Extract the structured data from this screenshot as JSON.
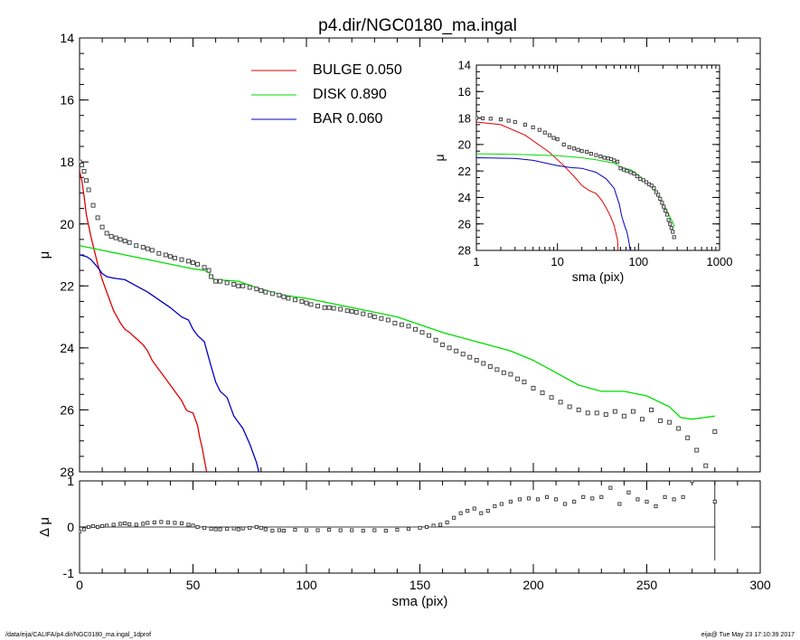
{
  "title": "p4.dir/NGC0180_ma.ingal",
  "footer_left": "/data/eija/CALIFA/p4.dir/NGC0180_ma.ingal_1dprof",
  "footer_right": "eija@  Tue May 23 17:10:39 2017",
  "colors": {
    "bulge": "#e00000",
    "disk": "#00dd00",
    "bar": "#0000c0",
    "data": "#555555"
  },
  "chart_data": [
    {
      "id": "main",
      "type": "line",
      "xlabel": "",
      "ylabel": "μ",
      "xlim": [
        0,
        300
      ],
      "ylim": [
        28,
        14
      ],
      "yticks": [
        14,
        16,
        18,
        20,
        22,
        24,
        26,
        28
      ],
      "legend": [
        {
          "label": "BULGE  0.050",
          "color": "#e00000"
        },
        {
          "label": "DISK  0.890",
          "color": "#00dd00"
        },
        {
          "label": "BAR  0.060",
          "color": "#0000c0"
        }
      ],
      "series": [
        {
          "name": "BULGE",
          "color": "#e00000",
          "x": [
            0,
            1,
            2,
            3,
            5,
            8,
            10,
            12,
            15,
            18,
            20,
            22,
            25,
            28,
            30,
            32,
            35,
            38,
            40,
            42,
            45,
            47,
            48,
            50,
            52,
            53,
            54,
            55,
            56
          ],
          "y": [
            18.3,
            18.6,
            19.1,
            19.7,
            20.4,
            21.3,
            21.8,
            22.2,
            22.8,
            23.2,
            23.4,
            23.5,
            23.7,
            23.9,
            24.1,
            24.4,
            24.7,
            25.0,
            25.2,
            25.4,
            25.7,
            26.0,
            26.05,
            26.1,
            26.5,
            26.9,
            27.2,
            27.6,
            28.0
          ]
        },
        {
          "name": "DISK",
          "color": "#00dd00",
          "x": [
            0,
            10,
            20,
            30,
            40,
            50,
            55,
            57,
            58,
            60,
            70,
            80,
            90,
            100,
            110,
            120,
            130,
            140,
            150,
            160,
            170,
            180,
            190,
            200,
            210,
            220,
            230,
            240,
            250,
            260,
            265,
            270,
            275,
            280
          ],
          "y": [
            20.7,
            20.85,
            21.0,
            21.15,
            21.3,
            21.45,
            21.5,
            21.55,
            21.75,
            21.8,
            21.85,
            22.1,
            22.3,
            22.4,
            22.55,
            22.7,
            22.85,
            23.0,
            23.25,
            23.5,
            23.7,
            23.9,
            24.1,
            24.4,
            24.8,
            25.2,
            25.4,
            25.4,
            25.55,
            25.9,
            26.25,
            26.3,
            26.25,
            26.2
          ]
        },
        {
          "name": "BAR",
          "color": "#0000c0",
          "x": [
            0,
            3,
            5,
            8,
            10,
            12,
            15,
            20,
            25,
            30,
            35,
            40,
            45,
            48,
            50,
            52,
            55,
            58,
            60,
            62,
            65,
            68,
            70,
            72,
            75,
            78,
            79
          ],
          "y": [
            21.0,
            21.05,
            21.15,
            21.4,
            21.6,
            21.7,
            21.75,
            21.8,
            22.0,
            22.2,
            22.45,
            22.7,
            23.0,
            23.1,
            23.4,
            23.6,
            23.8,
            24.6,
            25.1,
            25.4,
            25.6,
            26.2,
            26.4,
            26.6,
            27.1,
            27.7,
            28.0
          ]
        },
        {
          "name": "",
          "color": "#555555",
          "marker": "square",
          "x": [
            0,
            1,
            2,
            3,
            4,
            6,
            8,
            10,
            12,
            14,
            16,
            18,
            20,
            22,
            25,
            28,
            30,
            32,
            35,
            38,
            40,
            42,
            45,
            48,
            50,
            52,
            55,
            57,
            58,
            60,
            62,
            65,
            68,
            70,
            72,
            75,
            78,
            80,
            82,
            85,
            88,
            90,
            92,
            95,
            98,
            100,
            102,
            105,
            108,
            110,
            112,
            115,
            118,
            120,
            122,
            125,
            128,
            130,
            133,
            136,
            139,
            142,
            145,
            148,
            151,
            154,
            157,
            160,
            163,
            166,
            169,
            172,
            175,
            178,
            181,
            184,
            187,
            190,
            193,
            196,
            200,
            204,
            208,
            212,
            216,
            220,
            224,
            228,
            232,
            236,
            240,
            244,
            248,
            252,
            256,
            260,
            264,
            268,
            272,
            276,
            280
          ],
          "y": [
            18.0,
            18.1,
            18.3,
            18.6,
            18.9,
            19.4,
            19.8,
            20.1,
            20.3,
            20.4,
            20.45,
            20.5,
            20.55,
            20.6,
            20.7,
            20.75,
            20.8,
            20.85,
            20.95,
            21.0,
            21.05,
            21.1,
            21.15,
            21.2,
            21.25,
            21.3,
            21.4,
            21.5,
            21.7,
            21.85,
            21.85,
            21.9,
            21.95,
            22.0,
            22.0,
            22.05,
            22.1,
            22.15,
            22.2,
            22.25,
            22.3,
            22.35,
            22.4,
            22.45,
            22.5,
            22.55,
            22.6,
            22.65,
            22.7,
            22.7,
            22.72,
            22.75,
            22.8,
            22.82,
            22.85,
            22.9,
            22.95,
            23.0,
            23.05,
            23.1,
            23.2,
            23.25,
            23.3,
            23.4,
            23.5,
            23.6,
            23.75,
            23.9,
            24.0,
            24.1,
            24.2,
            24.3,
            24.4,
            24.5,
            24.6,
            24.7,
            24.8,
            24.85,
            25.0,
            25.1,
            25.3,
            25.45,
            25.6,
            25.75,
            25.9,
            26.0,
            26.1,
            26.1,
            26.15,
            26.05,
            26.2,
            26.05,
            26.3,
            26.0,
            26.35,
            26.4,
            26.6,
            26.9,
            27.3,
            27.8,
            26.7
          ]
        }
      ]
    },
    {
      "id": "residual",
      "type": "scatter",
      "xlabel": "sma (pix)",
      "ylabel": "Δ μ",
      "xlim": [
        0,
        300
      ],
      "ylim": [
        -1,
        1
      ],
      "xticks": [
        0,
        50,
        100,
        150,
        200,
        250,
        300
      ],
      "yticks": [
        -1,
        0,
        1
      ],
      "series": [
        {
          "name": "",
          "color": "#555555",
          "marker": "square",
          "x": [
            0,
            2,
            4,
            6,
            8,
            10,
            12,
            15,
            18,
            20,
            22,
            25,
            28,
            30,
            33,
            36,
            39,
            42,
            45,
            48,
            50,
            52,
            55,
            58,
            60,
            62,
            65,
            68,
            70,
            72,
            75,
            78,
            80,
            82,
            85,
            88,
            90,
            95,
            100,
            105,
            110,
            115,
            120,
            125,
            130,
            135,
            140,
            145,
            150,
            153,
            156,
            159,
            162,
            165,
            168,
            171,
            174,
            177,
            180,
            183,
            186,
            190,
            194,
            198,
            202,
            206,
            210,
            214,
            218,
            222,
            226,
            230,
            234,
            238,
            242,
            246,
            250,
            254,
            258,
            262,
            266,
            270,
            280
          ],
          "y": [
            -0.1,
            -0.05,
            0.0,
            0.02,
            0.0,
            0.02,
            0.03,
            0.05,
            0.07,
            0.08,
            0.06,
            0.05,
            0.07,
            0.09,
            0.1,
            0.11,
            0.1,
            0.09,
            0.08,
            0.05,
            0.03,
            0.0,
            -0.02,
            -0.04,
            -0.05,
            -0.05,
            -0.04,
            -0.03,
            -0.05,
            -0.03,
            -0.02,
            0.0,
            -0.02,
            -0.05,
            -0.08,
            -0.07,
            -0.08,
            -0.06,
            -0.07,
            -0.07,
            -0.06,
            -0.07,
            -0.07,
            -0.08,
            -0.07,
            -0.08,
            -0.06,
            -0.04,
            -0.02,
            0.0,
            0.03,
            0.05,
            0.1,
            0.2,
            0.3,
            0.35,
            0.4,
            0.3,
            0.35,
            0.45,
            0.5,
            0.55,
            0.6,
            0.62,
            0.6,
            0.65,
            0.6,
            0.5,
            0.55,
            0.65,
            0.62,
            0.65,
            0.85,
            0.5,
            0.75,
            0.6,
            0.55,
            0.45,
            0.65,
            0.6,
            0.65,
            1.0,
            0.55
          ]
        }
      ]
    },
    {
      "id": "inset",
      "type": "line",
      "xlabel": "sma (pix)",
      "ylabel": "μ",
      "xscale": "log",
      "xlim": [
        1,
        1000
      ],
      "ylim": [
        28,
        14
      ],
      "xticks": [
        1,
        10,
        100,
        1000
      ],
      "yticks": [
        14,
        16,
        18,
        20,
        22,
        24,
        26,
        28
      ],
      "series": [
        {
          "name": "BULGE",
          "color": "#e00000",
          "x": [
            1,
            2,
            4,
            8,
            12,
            16,
            20,
            25,
            30,
            35,
            40,
            45,
            50,
            55,
            56
          ],
          "y": [
            18.3,
            18.5,
            19.3,
            20.6,
            21.6,
            22.4,
            23.1,
            23.5,
            23.7,
            24.2,
            24.8,
            25.4,
            26.1,
            27.2,
            28.0
          ]
        },
        {
          "name": "DISK",
          "color": "#00dd00",
          "x": [
            1,
            3,
            10,
            20,
            30,
            50,
            60,
            80,
            100,
            150,
            200,
            280
          ],
          "y": [
            20.7,
            20.75,
            20.85,
            21.0,
            21.15,
            21.4,
            21.7,
            21.9,
            22.3,
            23.3,
            24.4,
            26.2
          ]
        },
        {
          "name": "BAR",
          "color": "#0000c0",
          "x": [
            1,
            3,
            5,
            10,
            15,
            20,
            30,
            40,
            50,
            58,
            62,
            68,
            72,
            76,
            79
          ],
          "y": [
            21.0,
            21.05,
            21.2,
            21.6,
            21.75,
            21.8,
            22.1,
            22.6,
            23.3,
            24.5,
            25.4,
            26.2,
            26.6,
            27.3,
            28.0
          ]
        },
        {
          "name": "",
          "color": "#555555",
          "marker": "square",
          "x": [
            1,
            1.2,
            1.5,
            2,
            2.5,
            3,
            4,
            5,
            6,
            7,
            8,
            9,
            10,
            12,
            14,
            16,
            18,
            20,
            23,
            26,
            30,
            34,
            38,
            42,
            46,
            50,
            55,
            60,
            66,
            72,
            80,
            88,
            96,
            105,
            115,
            125,
            135,
            145,
            155,
            165,
            175,
            185,
            195,
            205,
            215,
            225,
            235,
            245,
            255,
            265,
            275
          ],
          "y": [
            18.0,
            18.02,
            18.05,
            18.1,
            18.2,
            18.3,
            18.5,
            18.7,
            18.9,
            19.1,
            19.3,
            19.5,
            19.6,
            20.0,
            20.2,
            20.3,
            20.4,
            20.5,
            20.55,
            20.7,
            20.8,
            20.9,
            21.0,
            21.05,
            21.1,
            21.2,
            21.3,
            21.8,
            21.9,
            22.0,
            22.1,
            22.2,
            22.4,
            22.6,
            22.7,
            22.85,
            23.0,
            23.1,
            23.3,
            23.6,
            23.8,
            24.1,
            24.4,
            24.7,
            25.0,
            25.3,
            25.7,
            26.0,
            26.3,
            26.6,
            27.0
          ]
        }
      ]
    }
  ]
}
